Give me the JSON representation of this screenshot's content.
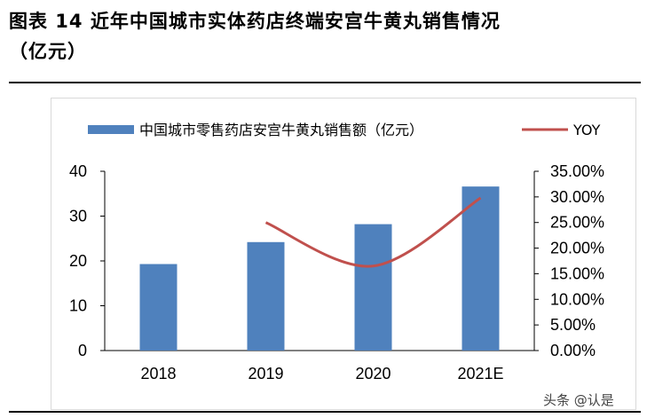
{
  "title": {
    "line1": "图表 14 近年中国城市实体药店终端安宫牛黄丸销售情况",
    "line2": "（亿元）"
  },
  "watermark": "头条 @认是",
  "colors": {
    "bar": "#4f81bd",
    "line": "#c0504d",
    "axis": "#000000",
    "frame": "#d9d9d9"
  },
  "chart_data": {
    "type": "bar",
    "categories": [
      "2018",
      "2019",
      "2020",
      "2021E"
    ],
    "series": [
      {
        "name": "中国城市零售药店安宫牛黄丸销售额（亿元）",
        "type": "bar",
        "axis": "left",
        "values": [
          19.3,
          24.2,
          28.2,
          36.6
        ]
      },
      {
        "name": "YOY",
        "type": "line",
        "axis": "right",
        "values": [
          null,
          25.0,
          16.5,
          29.8
        ]
      }
    ],
    "left_axis": {
      "ylim": [
        0,
        40
      ],
      "ticks": [
        "0",
        "10",
        "20",
        "30",
        "40"
      ]
    },
    "right_axis": {
      "ylim": [
        0,
        35
      ],
      "ticks": [
        "0.00%",
        "5.00%",
        "10.00%",
        "15.00%",
        "20.00%",
        "25.00%",
        "30.00%",
        "35.00%"
      ]
    },
    "legend_position": "top",
    "grid": false
  }
}
